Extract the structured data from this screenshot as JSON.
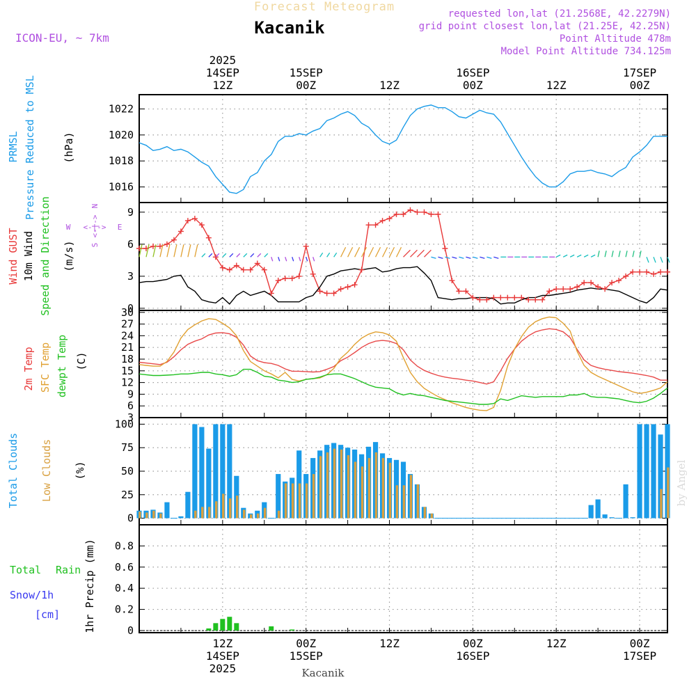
{
  "header": {
    "forecast_title": "Forecast Meteogram",
    "location": "Kacanik",
    "model": "ICON-EU, ~ 7km",
    "requested": "requested lon,lat (21.2568E, 42.2279N)",
    "grid_point": "grid point closest lon,lat (21.25E, 42.25N)",
    "point_altitude": "Point Altitude 478m",
    "model_altitude": "Model Point Altitude 734.125m",
    "footer_location": "Kacanik",
    "watermark": "by Angel"
  },
  "colors": {
    "pressure": "#1a9be8",
    "gust": "#e83838",
    "wind": "#000000",
    "temp2m": "#e84848",
    "sfc": "#e0a030",
    "dew": "#20c020",
    "total_cloud": "#1a9be8",
    "low_cloud": "#d8a040",
    "rain": "#20c020",
    "snow": "#3838f0",
    "title_purple": "#b050e0"
  },
  "time_axis": {
    "top_labels": [
      {
        "hour": 12,
        "lines": [
          "2025",
          "14SEP",
          "12Z"
        ]
      },
      {
        "hour": 24,
        "lines": [
          "15SEP",
          "00Z"
        ]
      },
      {
        "hour": 36,
        "lines": [
          "12Z"
        ]
      },
      {
        "hour": 48,
        "lines": [
          "16SEP",
          "00Z"
        ]
      },
      {
        "hour": 60,
        "lines": [
          "12Z"
        ]
      },
      {
        "hour": 72,
        "lines": [
          "17SEP",
          "00Z"
        ]
      }
    ],
    "bottom_labels": [
      {
        "hour": 12,
        "lines": [
          "12Z",
          "14SEP",
          "2025"
        ]
      },
      {
        "hour": 24,
        "lines": [
          "00Z",
          "15SEP"
        ]
      },
      {
        "hour": 36,
        "lines": [
          "12Z"
        ]
      },
      {
        "hour": 48,
        "lines": [
          "00Z",
          "16SEP"
        ]
      },
      {
        "hour": 60,
        "lines": [
          "12Z"
        ]
      },
      {
        "hour": 72,
        "lines": [
          "00Z",
          "17SEP"
        ]
      }
    ]
  },
  "labels": {
    "pressure": [
      "PRMSL",
      "Pressure Reduced to MSL",
      "(hPa)"
    ],
    "wind": [
      "Wind GUST",
      "10m Wind",
      "Speed and Direction",
      "(m/s)"
    ],
    "compass": {
      "n": "N",
      "s": "S",
      "w": "W",
      "e": "E",
      "axis": "<-|->"
    },
    "temp": [
      "2m Temp",
      "SFC Temp",
      "dewpt Temp",
      "(C)"
    ],
    "cloud": [
      "Total Clouds",
      "Low Clouds",
      "(%)"
    ],
    "precip": [
      "Total",
      "Rain",
      "Snow/1h",
      "[cm]",
      "1hr Precip (mm)"
    ]
  },
  "chart_data": [
    {
      "type": "line",
      "title": "PRMSL Pressure Reduced to MSL",
      "ylabel": "(hPa)",
      "ylim": [
        1014.8,
        1023.1
      ],
      "yticks": [
        1016,
        1018,
        1020,
        1022
      ],
      "x": [
        0,
        1,
        2,
        3,
        4,
        5,
        6,
        7,
        8,
        9,
        10,
        11,
        12,
        13,
        14,
        15,
        16,
        17,
        18,
        19,
        20,
        21,
        22,
        23,
        24,
        25,
        26,
        27,
        28,
        29,
        30,
        31,
        32,
        33,
        34,
        35,
        36,
        37,
        38,
        39,
        40,
        41,
        42,
        43,
        44,
        45,
        46,
        47,
        48,
        49,
        50,
        51,
        52,
        53,
        54,
        55,
        56,
        57,
        58,
        59,
        60,
        61,
        62,
        63,
        64,
        65,
        66,
        67,
        68,
        69,
        70,
        71,
        72,
        73,
        74,
        75,
        76
      ],
      "series": [
        {
          "name": "PRMSL",
          "values": [
            1019.4,
            1019.2,
            1018.8,
            1018.9,
            1019.1,
            1018.8,
            1018.9,
            1018.7,
            1018.3,
            1017.9,
            1017.6,
            1016.8,
            1016.2,
            1015.6,
            1015.5,
            1015.8,
            1016.8,
            1017.1,
            1018.0,
            1018.5,
            1019.5,
            1019.9,
            1019.9,
            1020.1,
            1020.0,
            1020.3,
            1020.5,
            1021.1,
            1021.3,
            1021.6,
            1021.8,
            1021.5,
            1020.9,
            1020.6,
            1020.0,
            1019.5,
            1019.3,
            1019.6,
            1020.6,
            1021.5,
            1022.0,
            1022.2,
            1022.3,
            1022.1,
            1022.1,
            1021.8,
            1021.4,
            1021.3,
            1021.6,
            1021.9,
            1021.7,
            1021.6,
            1021.0,
            1020.1,
            1019.2,
            1018.3,
            1017.5,
            1016.8,
            1016.3,
            1016.0,
            1016.0,
            1016.4,
            1017.0,
            1017.2,
            1017.2,
            1017.3,
            1017.1,
            1017.0,
            1016.8,
            1017.2,
            1017.5,
            1018.3,
            1018.7,
            1019.2,
            1019.9,
            1019.9,
            1019.9
          ]
        }
      ]
    },
    {
      "type": "line",
      "title": "Wind GUST / 10m Wind Speed and Direction",
      "ylabel": "(m/s)",
      "ylim": [
        -0.2,
        9.9
      ],
      "yticks": [
        0,
        3,
        6,
        9
      ],
      "x": [
        0,
        1,
        2,
        3,
        4,
        5,
        6,
        7,
        8,
        9,
        10,
        11,
        12,
        13,
        14,
        15,
        16,
        17,
        18,
        19,
        20,
        21,
        22,
        23,
        24,
        25,
        26,
        27,
        28,
        29,
        30,
        31,
        32,
        33,
        34,
        35,
        36,
        37,
        38,
        39,
        40,
        41,
        42,
        43,
        44,
        45,
        46,
        47,
        48,
        49,
        50,
        51,
        52,
        53,
        54,
        55,
        56,
        57,
        58,
        59,
        60,
        61,
        62,
        63,
        64,
        65,
        66,
        67,
        68,
        69,
        70,
        71,
        72,
        73,
        74,
        75,
        76
      ],
      "series": [
        {
          "name": "Wind GUST",
          "values": [
            5.6,
            5.6,
            5.8,
            5.8,
            6.0,
            6.4,
            7.2,
            8.2,
            8.4,
            7.8,
            6.6,
            4.8,
            3.8,
            3.6,
            4.0,
            3.6,
            3.6,
            4.2,
            3.6,
            1.4,
            2.6,
            2.8,
            2.8,
            3.0,
            5.8,
            3.2,
            1.6,
            1.4,
            1.4,
            1.8,
            2.0,
            2.2,
            3.6,
            7.8,
            7.8,
            8.2,
            8.4,
            8.8,
            8.8,
            9.2,
            9.0,
            9.0,
            8.8,
            8.8,
            5.6,
            2.6,
            1.6,
            1.6,
            1.0,
            0.8,
            0.8,
            1.0,
            1.0,
            1.0,
            1.0,
            1.0,
            0.8,
            0.8,
            0.8,
            1.6,
            1.8,
            1.8,
            1.8,
            2.0,
            2.4,
            2.4,
            2.0,
            1.8,
            2.4,
            2.6,
            3.0,
            3.4,
            3.4,
            3.4,
            3.2,
            3.4,
            3.4
          ]
        },
        {
          "name": "10m Wind",
          "values": [
            2.4,
            2.5,
            2.5,
            2.6,
            2.7,
            3.0,
            3.1,
            2.0,
            1.6,
            0.8,
            0.6,
            0.5,
            1.0,
            0.4,
            1.2,
            1.6,
            1.2,
            1.4,
            1.6,
            1.2,
            0.6,
            0.6,
            0.6,
            0.6,
            1.0,
            1.2,
            2.0,
            3.0,
            3.2,
            3.5,
            3.6,
            3.7,
            3.6,
            3.7,
            3.8,
            3.4,
            3.5,
            3.7,
            3.8,
            3.8,
            3.9,
            3.3,
            2.6,
            1.0,
            0.9,
            0.8,
            0.9,
            0.9,
            1.0,
            1.0,
            1.0,
            0.9,
            0.4,
            0.5,
            0.5,
            0.8,
            1.0,
            1.0,
            1.2,
            1.2,
            1.3,
            1.4,
            1.5,
            1.7,
            1.8,
            1.9,
            1.8,
            1.8,
            1.7,
            1.6,
            1.3,
            1.0,
            0.7,
            0.5,
            1.0,
            1.8,
            1.7
          ]
        }
      ]
    },
    {
      "type": "line",
      "title": "2m Temp / SFC Temp / dewpt Temp",
      "ylabel": "(C)",
      "ylim": [
        3,
        30.5
      ],
      "yticks": [
        3,
        6,
        9,
        12,
        15,
        18,
        21,
        24,
        27,
        30
      ],
      "x": [
        0,
        1,
        2,
        3,
        4,
        5,
        6,
        7,
        8,
        9,
        10,
        11,
        12,
        13,
        14,
        15,
        16,
        17,
        18,
        19,
        20,
        21,
        22,
        23,
        24,
        25,
        26,
        27,
        28,
        29,
        30,
        31,
        32,
        33,
        34,
        35,
        36,
        37,
        38,
        39,
        40,
        41,
        42,
        43,
        44,
        45,
        46,
        47,
        48,
        49,
        50,
        51,
        52,
        53,
        54,
        55,
        56,
        57,
        58,
        59,
        60,
        61,
        62,
        63,
        64,
        65,
        66,
        67,
        68,
        69,
        70,
        71,
        72,
        73,
        74,
        75,
        76
      ],
      "series": [
        {
          "name": "2m Temp",
          "values": [
            17.2,
            17.0,
            16.8,
            16.6,
            17.2,
            18.6,
            20.4,
            21.8,
            22.6,
            23.2,
            24.2,
            24.7,
            24.8,
            24.5,
            23.6,
            21.6,
            18.8,
            17.6,
            17.1,
            16.9,
            16.4,
            15.5,
            14.9,
            14.9,
            14.8,
            14.7,
            14.8,
            15.4,
            16.1,
            17.6,
            18.5,
            19.7,
            21.0,
            22.0,
            22.6,
            22.8,
            22.6,
            22.0,
            20.4,
            17.8,
            16.2,
            15.1,
            14.4,
            13.8,
            13.4,
            13.1,
            12.9,
            12.6,
            12.4,
            12.0,
            11.6,
            12.2,
            15.0,
            18.2,
            20.6,
            22.6,
            24.0,
            25.0,
            25.5,
            25.8,
            25.6,
            25.0,
            23.5,
            20.5,
            17.8,
            16.4,
            15.8,
            15.4,
            15.1,
            14.8,
            14.6,
            14.4,
            14.1,
            13.8,
            13.4,
            12.6,
            12.6
          ]
        },
        {
          "name": "SFC Temp",
          "values": [
            16.6,
            16.4,
            16.2,
            16.2,
            17.4,
            19.8,
            23.4,
            25.6,
            26.8,
            27.8,
            28.4,
            28.2,
            27.2,
            26.0,
            24.0,
            20.2,
            17.4,
            16.2,
            15.0,
            14.2,
            13.2,
            14.6,
            12.8,
            12.4,
            12.8,
            13.0,
            13.2,
            14.0,
            15.6,
            18.2,
            19.8,
            21.8,
            23.4,
            24.4,
            25.0,
            24.8,
            24.2,
            22.6,
            18.4,
            14.6,
            12.2,
            10.5,
            9.4,
            8.4,
            7.6,
            6.8,
            6.2,
            5.6,
            5.2,
            4.9,
            4.8,
            5.6,
            10.0,
            16.2,
            20.6,
            23.8,
            26.2,
            27.6,
            28.4,
            28.8,
            28.6,
            27.2,
            25.2,
            20.0,
            16.4,
            14.6,
            13.6,
            12.8,
            12.0,
            11.2,
            10.4,
            9.6,
            9.2,
            9.5,
            10.0,
            10.6,
            12.2
          ]
        },
        {
          "name": "dewpt Temp",
          "values": [
            14.2,
            14.0,
            13.8,
            13.8,
            13.9,
            14.0,
            14.2,
            14.2,
            14.4,
            14.6,
            14.6,
            14.2,
            14.0,
            13.6,
            14.0,
            15.4,
            15.4,
            14.6,
            13.6,
            13.4,
            12.6,
            12.4,
            12.0,
            12.2,
            12.8,
            13.0,
            13.4,
            14.0,
            14.2,
            14.2,
            13.6,
            13.0,
            12.2,
            11.4,
            10.8,
            10.6,
            10.4,
            9.4,
            8.8,
            9.2,
            8.8,
            8.6,
            8.2,
            7.8,
            7.4,
            7.2,
            7.0,
            6.8,
            6.6,
            6.4,
            6.4,
            6.6,
            7.8,
            7.4,
            8.0,
            8.6,
            8.4,
            8.2,
            8.4,
            8.4,
            8.4,
            8.4,
            8.8,
            8.8,
            9.2,
            8.4,
            8.2,
            8.2,
            8.0,
            7.8,
            7.4,
            7.0,
            6.8,
            7.2,
            8.0,
            9.2,
            10.6
          ]
        }
      ]
    },
    {
      "type": "bar",
      "title": "Total Clouds / Low Clouds",
      "ylabel": "(%)",
      "ylim": [
        -7,
        107
      ],
      "yticks": [
        0,
        25,
        50,
        75,
        100
      ],
      "x": [
        0,
        1,
        2,
        3,
        4,
        5,
        6,
        7,
        8,
        9,
        10,
        11,
        12,
        13,
        14,
        15,
        16,
        17,
        18,
        19,
        20,
        21,
        22,
        23,
        24,
        25,
        26,
        27,
        28,
        29,
        30,
        31,
        32,
        33,
        34,
        35,
        36,
        37,
        38,
        39,
        40,
        41,
        42,
        43,
        44,
        45,
        46,
        47,
        48,
        49,
        50,
        51,
        52,
        53,
        54,
        55,
        56,
        57,
        58,
        59,
        60,
        61,
        62,
        63,
        64,
        65,
        66,
        67,
        68,
        69,
        70,
        71,
        72,
        73,
        74,
        75,
        76
      ],
      "series": [
        {
          "name": "Total Clouds",
          "values": [
            8,
            8,
            9,
            6,
            17,
            0,
            2,
            28,
            100,
            97,
            74,
            100,
            100,
            100,
            45,
            11,
            5,
            8,
            17,
            0,
            47,
            39,
            43,
            72,
            47,
            64,
            72,
            78,
            80,
            78,
            75,
            73,
            68,
            76,
            81,
            69,
            64,
            62,
            60,
            47,
            36,
            12,
            5,
            0,
            0,
            0,
            0,
            0,
            0,
            0,
            0,
            0,
            0,
            0,
            0,
            0,
            0,
            0,
            0,
            0,
            0,
            0,
            0,
            0,
            0,
            14,
            20,
            4,
            1,
            0,
            36,
            1,
            100,
            100,
            100,
            89,
            100
          ]
        },
        {
          "name": "Low Clouds",
          "values": [
            7,
            6,
            8,
            5,
            0,
            0,
            0,
            0,
            8,
            12,
            12,
            18,
            26,
            21,
            24,
            9,
            4,
            5,
            11,
            0,
            8,
            37,
            37,
            37,
            37,
            47,
            66,
            70,
            74,
            73,
            67,
            60,
            55,
            64,
            70,
            64,
            59,
            35,
            35,
            46,
            36,
            12,
            5,
            0,
            0,
            0,
            0,
            0,
            0,
            0,
            0,
            0,
            0,
            0,
            0,
            0,
            0,
            0,
            0,
            0,
            0,
            0,
            0,
            0,
            0,
            0,
            0,
            0,
            0,
            0,
            0,
            0,
            0,
            0,
            0,
            31,
            54
          ]
        }
      ]
    },
    {
      "type": "bar",
      "title": "1hr Precip",
      "ylabel": "1hr Precip (mm)",
      "ylim": [
        -0.02,
        1.0
      ],
      "yticks": [
        0,
        0.2,
        0.4,
        0.6,
        0.8
      ],
      "x": [
        10,
        11,
        12,
        13,
        14,
        19,
        22
      ],
      "series": [
        {
          "name": "Total Rain",
          "values": [
            0.02,
            0.07,
            0.11,
            0.13,
            0.07,
            0.04,
            0.01
          ]
        }
      ]
    }
  ]
}
